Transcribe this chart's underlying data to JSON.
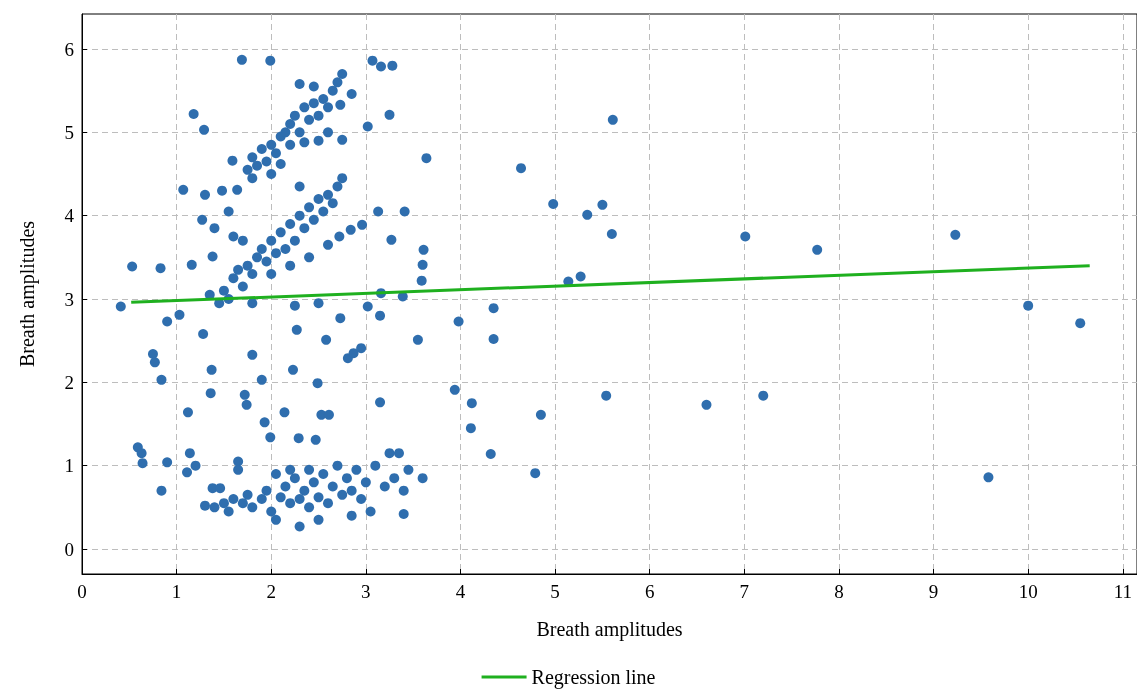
{
  "chart_data": {
    "type": "scatter",
    "xlabel": "Breath amplitudes",
    "ylabel": "Breath amplitudes",
    "xlim": [
      0,
      11.15
    ],
    "ylim": [
      -0.3,
      6.42
    ],
    "xticks": [
      0,
      1,
      2,
      3,
      4,
      5,
      6,
      7,
      8,
      9,
      10,
      11
    ],
    "yticks": [
      0,
      1,
      2,
      3,
      4,
      5,
      6
    ],
    "grid": true,
    "legend": "bottom",
    "marker": "circle",
    "series": [
      {
        "color": "#2f6eae",
        "x": [
          0.53,
          0.83,
          0.41,
          0.59,
          0.64,
          0.63,
          0.84,
          0.9,
          0.75,
          0.77,
          0.84,
          0.9,
          1.03,
          1.07,
          1.18,
          1.29,
          1.16,
          1.12,
          1.14,
          1.11,
          1.2,
          1.28,
          1.3,
          1.27,
          1.37,
          1.36,
          1.38,
          1.46,
          1.38,
          1.48,
          1.64,
          1.59,
          1.69,
          1.99,
          1.8,
          1.72,
          1.74,
          1.9,
          1.93,
          1.99,
          2.14,
          2.23,
          2.27,
          2.29,
          2.47,
          2.49,
          2.53,
          2.61,
          2.58,
          2.73,
          2.81,
          2.87,
          2.95,
          2.75,
          2.85,
          2.73,
          3.02,
          3.07,
          3.16,
          3.28,
          3.25,
          3.13,
          3.41,
          3.27,
          2.96,
          2.84,
          2.72,
          3.16,
          3.02,
          3.15,
          3.15,
          3.39,
          3.55,
          3.61,
          3.6,
          3.59,
          3.64,
          3.94,
          3.98,
          4.12,
          4.11,
          4.35,
          4.35,
          4.32,
          4.64,
          4.79,
          4.85,
          4.98,
          5.14,
          5.27,
          5.34,
          5.5,
          5.61,
          5.6,
          5.54,
          6.6,
          7.01,
          7.2,
          7.77,
          9.23,
          9.58,
          10.0,
          10.55,
          1.75,
          1.8,
          1.85,
          1.9,
          1.95,
          2.0,
          2.05,
          2.1,
          2.15,
          2.2,
          2.2,
          2.25,
          2.3,
          2.35,
          2.4,
          2.45,
          2.5,
          2.55,
          2.6,
          2.65,
          2.7,
          2.75,
          2.3,
          2.45,
          2.6,
          2.5,
          1.8,
          2.0,
          2.35,
          2.1,
          1.5,
          1.55,
          1.6,
          1.65,
          1.7,
          1.75,
          1.8,
          1.85,
          1.9,
          1.95,
          2.0,
          2.05,
          2.1,
          2.15,
          2.2,
          2.25,
          2.3,
          2.35,
          2.4,
          2.45,
          2.5,
          2.55,
          2.6,
          2.65,
          2.7,
          2.75,
          2.0,
          2.2,
          2.4,
          2.6,
          2.3,
          1.55,
          1.6,
          1.4,
          1.7,
          2.5,
          1.8,
          1.35,
          1.45,
          2.25,
          1.3,
          1.4,
          1.5,
          1.55,
          1.6,
          1.7,
          1.75,
          1.8,
          1.9,
          1.95,
          2.0,
          2.05,
          2.1,
          2.15,
          2.2,
          2.25,
          2.3,
          2.3,
          2.35,
          2.4,
          2.45,
          2.5,
          2.55,
          2.6,
          2.65,
          2.7,
          2.75,
          2.8,
          2.85,
          2.9,
          2.95,
          3.0,
          3.05,
          3.1,
          3.2,
          3.3,
          3.35,
          3.4,
          3.45,
          3.6,
          3.4,
          2.85,
          2.5,
          1.65,
          1.65,
          2.05,
          2.2,
          2.4,
          3.25
        ],
        "values": [
          3.39,
          3.37,
          2.91,
          1.22,
          1.03,
          1.15,
          0.7,
          1.04,
          2.34,
          2.24,
          2.03,
          2.73,
          2.81,
          4.31,
          5.22,
          5.03,
          3.41,
          1.64,
          1.15,
          0.92,
          1.0,
          2.58,
          4.25,
          3.95,
          2.15,
          1.87,
          0.73,
          0.73,
          3.51,
          4.3,
          4.31,
          4.66,
          5.87,
          5.86,
          2.33,
          1.85,
          1.73,
          2.03,
          1.52,
          1.34,
          1.64,
          2.15,
          2.63,
          1.33,
          1.31,
          1.99,
          1.61,
          1.61,
          2.51,
          2.77,
          2.29,
          2.35,
          2.41,
          4.91,
          5.46,
          5.33,
          5.07,
          5.86,
          5.79,
          5.8,
          5.21,
          4.05,
          4.05,
          3.71,
          3.89,
          3.83,
          3.75,
          3.07,
          2.91,
          2.8,
          1.76,
          3.03,
          2.51,
          3.59,
          3.41,
          3.22,
          4.69,
          1.91,
          2.73,
          1.75,
          1.45,
          2.89,
          2.52,
          1.14,
          4.57,
          0.91,
          1.61,
          4.14,
          3.21,
          3.27,
          4.01,
          4.13,
          5.15,
          3.78,
          1.84,
          1.73,
          3.75,
          1.84,
          3.59,
          3.77,
          0.86,
          2.92,
          2.71,
          4.55,
          4.7,
          4.6,
          4.8,
          4.65,
          4.85,
          4.75,
          4.95,
          5.0,
          4.85,
          5.1,
          5.2,
          5.0,
          5.3,
          5.15,
          5.35,
          5.2,
          5.4,
          5.3,
          5.5,
          5.6,
          5.7,
          5.58,
          5.55,
          5.0,
          4.9,
          4.45,
          4.5,
          4.88,
          4.62,
          3.1,
          3.0,
          3.25,
          3.35,
          3.15,
          3.4,
          3.3,
          3.5,
          3.6,
          3.45,
          3.7,
          3.55,
          3.8,
          3.6,
          3.9,
          3.7,
          4.0,
          3.85,
          4.1,
          3.95,
          4.2,
          4.05,
          4.25,
          4.15,
          4.35,
          4.45,
          3.3,
          3.4,
          3.5,
          3.65,
          4.35,
          4.05,
          3.75,
          3.85,
          3.7,
          2.95,
          2.95,
          3.05,
          2.95,
          2.92,
          0.52,
          0.5,
          0.55,
          0.45,
          0.6,
          0.55,
          0.65,
          0.5,
          0.6,
          0.7,
          0.45,
          0.35,
          0.62,
          0.75,
          0.55,
          0.85,
          0.27,
          0.6,
          0.7,
          0.5,
          0.8,
          0.62,
          0.9,
          0.55,
          0.75,
          1.0,
          0.65,
          0.85,
          0.7,
          0.95,
          0.6,
          0.8,
          0.45,
          1.0,
          0.75,
          0.85,
          1.15,
          0.7,
          0.95,
          0.85,
          0.42,
          0.4,
          0.35,
          1.05,
          0.95,
          0.9,
          0.95,
          0.95,
          1.15
        ]
      },
      {
        "type": "line",
        "name": "Regression line",
        "color": "#1fb01f",
        "marker": "none",
        "line_style": "solid",
        "x": [
          0.52,
          10.65
        ],
        "values": [
          2.96,
          3.4
        ]
      }
    ]
  }
}
